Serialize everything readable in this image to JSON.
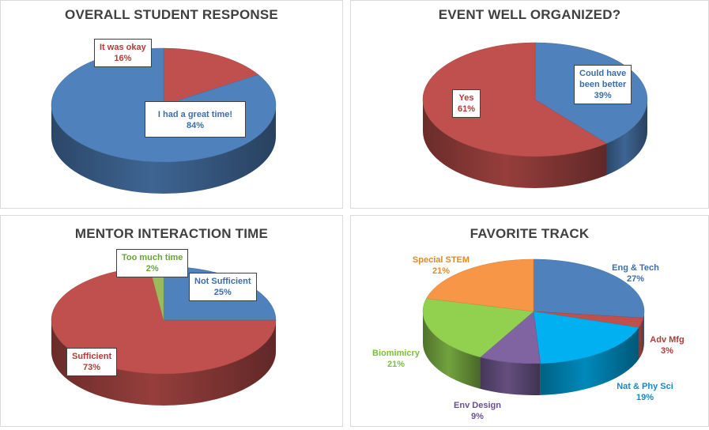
{
  "colors": {
    "blue": "#4f81bd",
    "red": "#c0504d",
    "green": "#9bbb59",
    "orange": "#f79646",
    "cyan": "#00b0f0",
    "purple": "#8064a2",
    "ltgreen": "#92d050"
  },
  "chart_data": [
    {
      "type": "pie",
      "title": "OVERALL STUDENT RESPONSE",
      "categories": [
        "It was okay",
        "I had a great time!"
      ],
      "values": [
        16,
        84
      ],
      "labels": [
        "16%",
        "84%"
      ]
    },
    {
      "type": "pie",
      "title": "EVENT WELL ORGANIZED?",
      "categories": [
        "Could have been better",
        "Yes"
      ],
      "category_lines": [
        [
          "Could have",
          "been better"
        ],
        [
          "Yes"
        ]
      ],
      "values": [
        39,
        61
      ],
      "labels": [
        "39%",
        "61%"
      ]
    },
    {
      "type": "pie",
      "title": "MENTOR INTERACTION TIME",
      "categories": [
        "Not Sufficient",
        "Sufficient",
        "Too much time"
      ],
      "values": [
        25,
        73,
        2
      ],
      "labels": [
        "25%",
        "73%",
        "2%"
      ]
    },
    {
      "type": "pie",
      "title": "FAVORITE TRACK",
      "categories": [
        "Eng & Tech",
        "Adv Mfg",
        "Nat & Phy Sci",
        "Env Design",
        "Biomimicry",
        "Special STEM"
      ],
      "values": [
        27,
        3,
        19,
        9,
        21,
        21
      ],
      "labels": [
        "27%",
        "3%",
        "19%",
        "9%",
        "21%",
        "21%"
      ]
    }
  ]
}
